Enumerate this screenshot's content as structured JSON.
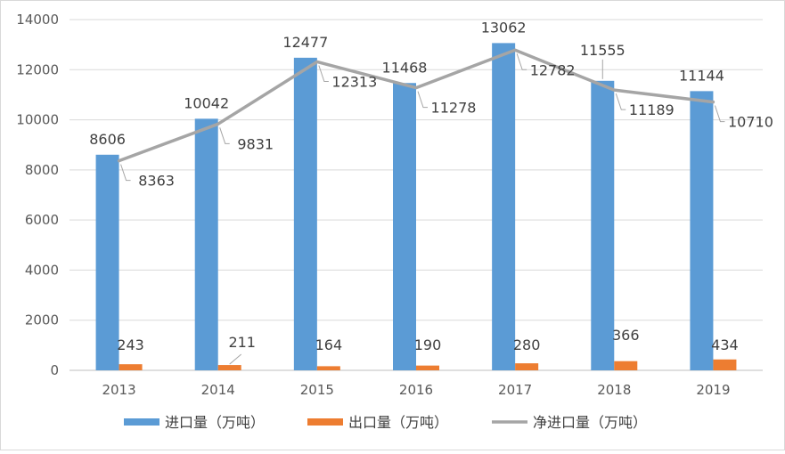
{
  "chart_data": {
    "type": "bar",
    "categories": [
      "2013",
      "2014",
      "2015",
      "2016",
      "2017",
      "2018",
      "2019"
    ],
    "series": [
      {
        "name": "进口量（万吨）",
        "type": "bar",
        "color": "#5B9BD5",
        "values": [
          8606,
          10042,
          12477,
          11468,
          13062,
          11555,
          11144
        ]
      },
      {
        "name": "出口量（万吨）",
        "type": "bar",
        "color": "#ED7D31",
        "values": [
          243,
          211,
          164,
          190,
          280,
          366,
          434
        ]
      },
      {
        "name": "净进口量（万吨）",
        "type": "line",
        "color": "#A5A5A5",
        "values": [
          8363,
          9831,
          12313,
          11278,
          12782,
          11189,
          10710
        ]
      }
    ],
    "ylim": [
      0,
      14000
    ],
    "yticks": [
      "0",
      "2000",
      "4000",
      "6000",
      "8000",
      "10000",
      "12000",
      "14000"
    ],
    "grid": true,
    "legend": "bottom"
  }
}
